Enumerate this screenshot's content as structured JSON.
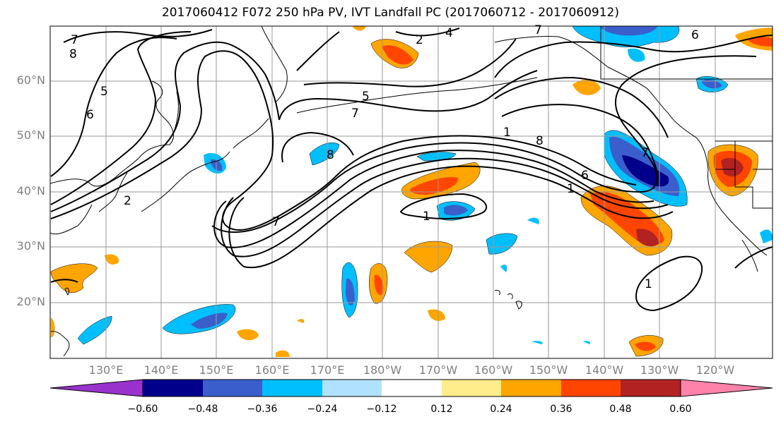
{
  "title": "2017060412 F072 250 hPa PV, IVT Landfall PC (2017060712 - 2017060912)",
  "lat_labels": [
    "60°N",
    "50°N",
    "40°N",
    "30°N",
    "20°N"
  ],
  "lon_labels": [
    "130°E",
    "140°E",
    "150°E",
    "160°E",
    "170°E",
    "180°W",
    "170°W",
    "160°W",
    "150°W",
    "140°W",
    "130°W",
    "120°W"
  ],
  "colorbar": {
    "ticks": [
      "−0.60",
      "−0.48",
      "−0.36",
      "−0.24",
      "−0.12",
      "0.12",
      "0.24",
      "0.36",
      "0.48",
      "0.60"
    ],
    "colors": [
      "#9932cc",
      "#00008b",
      "#3a5fcd",
      "#00bfff",
      "#b0e2ff",
      "#ffffff",
      "#ffec8b",
      "#ffa500",
      "#ff4500",
      "#b22222",
      "#ff82ab"
    ]
  },
  "contour_labels": [
    "7",
    "8",
    "5",
    "6",
    "2",
    "4",
    "5",
    "7",
    "8",
    "1",
    "8",
    "6",
    "7",
    "1",
    "7",
    "1",
    "6",
    "2",
    "7"
  ],
  "colors": {
    "grid": "#9a9a9a",
    "coast": "#000000",
    "contour": "#000000"
  }
}
